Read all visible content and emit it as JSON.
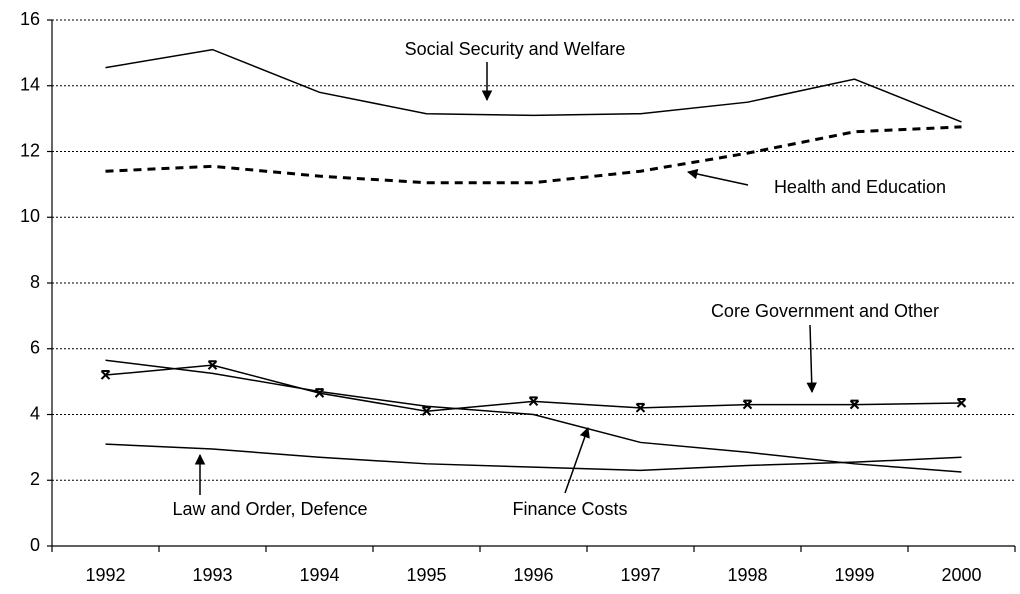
{
  "chart_data": {
    "type": "line",
    "categories": [
      "1992",
      "1993",
      "1994",
      "1995",
      "1996",
      "1997",
      "1998",
      "1999",
      "2000"
    ],
    "series": [
      {
        "name": "Social Security and Welfare",
        "color": "#000000",
        "line_style": "solid",
        "values": [
          14.55,
          15.1,
          13.8,
          13.15,
          13.1,
          13.15,
          13.5,
          14.2,
          12.9
        ]
      },
      {
        "name": "Health and Education",
        "color": "#000000",
        "line_style": "dashed",
        "values": [
          11.4,
          11.55,
          11.25,
          11.05,
          11.05,
          11.4,
          11.95,
          12.6,
          12.75
        ]
      },
      {
        "name": "Core Government and Other",
        "color": "#000000",
        "line_style": "solid",
        "marker": "x",
        "values": [
          5.2,
          5.5,
          4.65,
          4.1,
          4.4,
          4.2,
          4.3,
          4.3,
          4.35
        ]
      },
      {
        "name": "Finance Costs",
        "color": "#000000",
        "line_style": "solid",
        "values": [
          5.65,
          5.25,
          4.7,
          4.25,
          4.0,
          3.15,
          2.85,
          2.5,
          2.25
        ]
      },
      {
        "name": "Law and Order, Defence",
        "color": "#000000",
        "line_style": "solid",
        "values": [
          3.1,
          2.95,
          2.7,
          2.5,
          2.4,
          2.3,
          2.45,
          2.55,
          2.7
        ]
      }
    ],
    "ylim": [
      0,
      16
    ],
    "yticks": [
      0,
      2,
      4,
      6,
      8,
      10,
      12,
      14,
      16
    ],
    "grid": true
  }
}
